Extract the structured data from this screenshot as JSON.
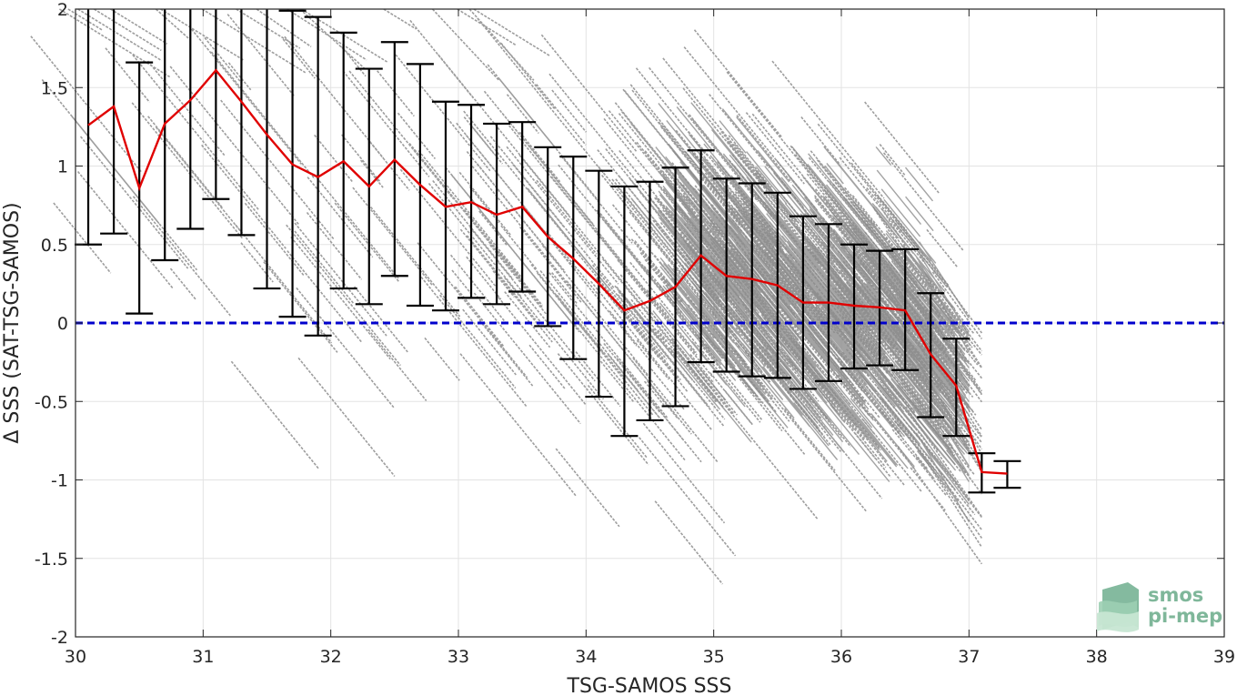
{
  "chart_data": {
    "type": "scatter",
    "title": "",
    "xlabel": "TSG-SAMOS SSS",
    "ylabel": "Δ SSS (SAT-TSG-SAMOS)",
    "xlim": [
      30,
      39
    ],
    "ylim": [
      -2,
      2
    ],
    "xticks": [
      30,
      31,
      32,
      33,
      34,
      35,
      36,
      37,
      38,
      39
    ],
    "yticks": [
      -2,
      -1.5,
      -1,
      -0.5,
      0,
      0.5,
      1,
      1.5,
      2
    ],
    "xtick_labels": [
      "30",
      "31",
      "32",
      "33",
      "34",
      "35",
      "36",
      "37",
      "38",
      "39"
    ],
    "ytick_labels": [
      "-2",
      "-1.5",
      "-1",
      "-0.5",
      "0",
      "0.5",
      "1",
      "1.5",
      "2"
    ],
    "grid": true,
    "reference_line": {
      "y": 0,
      "color": "#0000cc",
      "style": "dashed"
    },
    "colors": {
      "scatter": "#8c8c8c",
      "mean_line": "#e00000",
      "error_bars": "#000000",
      "reference": "#0000cc"
    },
    "series": [
      {
        "type": "line_with_errorbars",
        "x": [
          30.1,
          30.3,
          30.5,
          30.7,
          30.9,
          31.1,
          31.3,
          31.5,
          31.7,
          31.9,
          32.1,
          32.3,
          32.5,
          32.7,
          32.9,
          33.1,
          33.3,
          33.5,
          33.7,
          33.9,
          34.1,
          34.3,
          34.5,
          34.7,
          34.9,
          35.1,
          35.3,
          35.5,
          35.7,
          35.9,
          36.1,
          36.3,
          36.5,
          36.7,
          36.9,
          37.1,
          37.3
        ],
        "mean": [
          1.26,
          1.38,
          0.86,
          1.27,
          1.42,
          1.61,
          1.41,
          1.2,
          1.01,
          0.93,
          1.03,
          0.87,
          1.04,
          0.88,
          0.74,
          0.77,
          0.69,
          0.74,
          0.55,
          0.41,
          0.25,
          0.08,
          0.14,
          0.23,
          0.43,
          0.3,
          0.28,
          0.24,
          0.13,
          0.13,
          0.11,
          0.1,
          0.08,
          -0.2,
          -0.4,
          -0.95,
          -0.96
        ],
        "lower": [
          0.5,
          0.57,
          0.06,
          0.4,
          0.6,
          0.79,
          0.56,
          0.22,
          0.04,
          -0.08,
          0.22,
          0.12,
          0.3,
          0.11,
          0.08,
          0.16,
          0.12,
          0.2,
          -0.02,
          -0.23,
          -0.47,
          -0.72,
          -0.62,
          -0.53,
          -0.25,
          -0.31,
          -0.34,
          -0.35,
          -0.42,
          -0.37,
          -0.29,
          -0.27,
          -0.3,
          -0.6,
          -0.72,
          -1.08,
          -1.05
        ],
        "upper": [
          2.0,
          2.0,
          1.66,
          2.0,
          2.0,
          2.0,
          2.0,
          2.0,
          1.99,
          1.95,
          1.85,
          1.62,
          1.79,
          1.65,
          1.41,
          1.39,
          1.27,
          1.28,
          1.12,
          1.06,
          0.97,
          0.87,
          0.9,
          0.99,
          1.1,
          0.92,
          0.89,
          0.83,
          0.68,
          0.63,
          0.5,
          0.46,
          0.47,
          0.19,
          -0.1,
          -0.83,
          -0.88
        ]
      }
    ]
  },
  "logo": {
    "line1": "smos",
    "line2": "pi-mep"
  }
}
